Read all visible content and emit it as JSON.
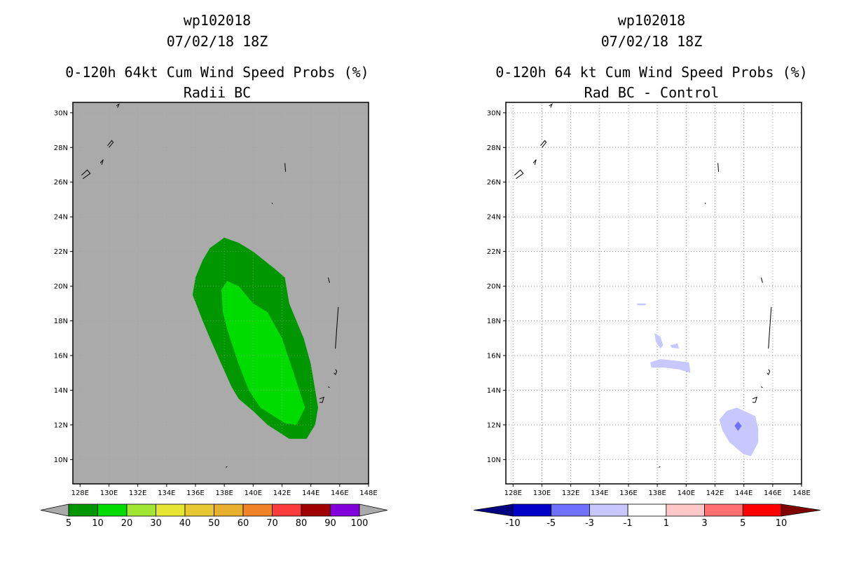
{
  "left_panel": {
    "title_lines": [
      "wp102018",
      "07/02/18 18Z",
      "0-120h 64kt Cum Wind Speed Probs (%)",
      "Radii BC"
    ]
  },
  "right_panel": {
    "title_lines": [
      "wp102018",
      "07/02/18 18Z",
      "0-120h 64 kt Cum Wind Speed Probs (%)",
      "Rad BC - Control"
    ]
  },
  "chart_data": [
    {
      "type": "heatmap",
      "title": "0-120h 64kt Cum Wind Speed Probs (%) Radii BC",
      "x_ticks": [
        "128E",
        "130E",
        "132E",
        "134E",
        "136E",
        "138E",
        "140E",
        "142E",
        "144E",
        "146E",
        "148E"
      ],
      "y_ticks": [
        "10N",
        "12N",
        "14N",
        "16N",
        "18N",
        "20N",
        "22N",
        "24N",
        "26N",
        "28N",
        "30N"
      ],
      "xlim": [
        127.5,
        148
      ],
      "ylim": [
        8.6,
        30.6
      ],
      "background_color": "#aaaaaa",
      "contour_levels": [
        {
          "level": 5,
          "color": "#009600",
          "polygon_lonlat": [
            [
              137,
              22.2
            ],
            [
              138,
              22.8
            ],
            [
              139,
              22.5
            ],
            [
              140,
              22
            ],
            [
              141.5,
              21
            ],
            [
              142.2,
              20.5
            ],
            [
              142.5,
              19
            ],
            [
              143,
              18
            ],
            [
              143.5,
              17
            ],
            [
              144,
              15.5
            ],
            [
              144.2,
              14.5
            ],
            [
              144.5,
              13
            ],
            [
              144.3,
              12
            ],
            [
              143.7,
              11.2
            ],
            [
              142.5,
              11.2
            ],
            [
              141,
              12
            ],
            [
              140,
              12.8
            ],
            [
              139,
              13.5
            ],
            [
              138.5,
              14.2
            ],
            [
              137.8,
              15.5
            ],
            [
              137,
              17
            ],
            [
              136.5,
              18
            ],
            [
              135.8,
              19.5
            ],
            [
              136,
              20.5
            ],
            [
              136.5,
              21.5
            ]
          ]
        },
        {
          "level": 10,
          "color": "#00dc00",
          "polygon_lonlat": [
            [
              138.2,
              20.3
            ],
            [
              139,
              20
            ],
            [
              140,
              19
            ],
            [
              141,
              18.5
            ],
            [
              142,
              17
            ],
            [
              142.8,
              15
            ],
            [
              143.6,
              13
            ],
            [
              143,
              12
            ],
            [
              142.2,
              12.1
            ],
            [
              140.5,
              13
            ],
            [
              139.7,
              14
            ],
            [
              139,
              15.5
            ],
            [
              138.6,
              16.5
            ],
            [
              138.2,
              17.5
            ],
            [
              137.9,
              18.5
            ],
            [
              137.8,
              19.8
            ]
          ]
        }
      ],
      "colorbar": {
        "labels": [
          "5",
          "10",
          "20",
          "30",
          "40",
          "50",
          "60",
          "70",
          "80",
          "90",
          "100"
        ],
        "colors": [
          "#009600",
          "#00dc00",
          "#a0e632",
          "#e6e632",
          "#e6c832",
          "#e6af2d",
          "#f08228",
          "#fa3c3c",
          "#a00000",
          "#8200dc"
        ],
        "under_color": "#aaaaaa",
        "over_color": "#aaaaaa"
      }
    },
    {
      "type": "heatmap",
      "title": "0-120h 64 kt Cum Wind Speed Probs (%) Rad BC - Control",
      "x_ticks": [
        "128E",
        "130E",
        "132E",
        "134E",
        "136E",
        "138E",
        "140E",
        "142E",
        "144E",
        "146E",
        "148E"
      ],
      "y_ticks": [
        "10N",
        "12N",
        "14N",
        "16N",
        "18N",
        "20N",
        "22N",
        "24N",
        "26N",
        "28N",
        "30N"
      ],
      "xlim": [
        127.5,
        148
      ],
      "ylim": [
        8.6,
        30.6
      ],
      "background_color": "#ffffff",
      "regions": [
        {
          "value_range": "-3 to -1",
          "color": "#c8c8ff",
          "polygon_lonlat": [
            [
              143.5,
              13
            ],
            [
              144.3,
              12.7
            ],
            [
              144.8,
              12.5
            ],
            [
              145,
              11.8
            ],
            [
              145,
              11
            ],
            [
              144.5,
              10.2
            ],
            [
              144,
              10.3
            ],
            [
              143,
              11
            ],
            [
              142.5,
              11.7
            ],
            [
              142.3,
              12.3
            ],
            [
              142.8,
              12.8
            ]
          ]
        },
        {
          "value_range": "-5 to -3",
          "color": "#7070ff",
          "polygon_lonlat": [
            [
              143.6,
              12.2
            ],
            [
              143.85,
              11.95
            ],
            [
              143.6,
              11.65
            ],
            [
              143.35,
              11.95
            ]
          ]
        },
        {
          "value_range": "-3 to -1",
          "color": "#c8c8ff",
          "polygon_lonlat": [
            [
              137.5,
              15.6
            ],
            [
              138.2,
              15.8
            ],
            [
              139.3,
              15.7
            ],
            [
              140.2,
              15.6
            ],
            [
              140.3,
              15
            ],
            [
              139.5,
              15.2
            ],
            [
              138.5,
              15.3
            ],
            [
              137.6,
              15.3
            ]
          ]
        },
        {
          "value_range": "-3 to -1",
          "color": "#c8c8ff",
          "polygon_lonlat": [
            [
              138.9,
              16.6
            ],
            [
              139.4,
              16.7
            ],
            [
              139.5,
              16.4
            ],
            [
              139,
              16.45
            ]
          ]
        },
        {
          "value_range": "-3 to -1",
          "color": "#c8c8ff",
          "polygon_lonlat": [
            [
              137.8,
              17.3
            ],
            [
              138.2,
              17.1
            ],
            [
              138.4,
              16.6
            ],
            [
              138.2,
              16.4
            ],
            [
              137.9,
              16.8
            ]
          ]
        },
        {
          "value_range": "-3 to -1",
          "color": "#c8c8ff",
          "polygon_lonlat": [
            [
              136.6,
              19.0
            ],
            [
              137.2,
              19.0
            ],
            [
              137.2,
              18.9
            ],
            [
              136.6,
              18.9
            ]
          ]
        }
      ],
      "colorbar": {
        "labels": [
          "-10",
          "-5",
          "-3",
          "-1",
          "1",
          "3",
          "5",
          "10"
        ],
        "colors": [
          "#0000c8",
          "#7070ff",
          "#c8c8ff",
          "#ffffff",
          "#ffc8c8",
          "#ff7070",
          "#ff0000"
        ],
        "under_color": "#000080",
        "over_color": "#800000"
      }
    }
  ],
  "islands_lonlat": [
    {
      "name": "ryukyu-1",
      "points": [
        [
          128.2,
          26.2
        ],
        [
          128.7,
          26.5
        ],
        [
          128.5,
          26.7
        ],
        [
          128.1,
          26.4
        ]
      ]
    },
    {
      "name": "ryukyu-2",
      "points": [
        [
          129.4,
          27.1
        ],
        [
          129.6,
          27.3
        ],
        [
          129.5,
          27.0
        ]
      ]
    },
    {
      "name": "amami",
      "points": [
        [
          129.9,
          28.1
        ],
        [
          130.2,
          28.4
        ],
        [
          130.3,
          28.3
        ],
        [
          130,
          28
        ]
      ]
    },
    {
      "name": "kyushu-tip",
      "points": [
        [
          130.5,
          30.4
        ],
        [
          130.7,
          30.5
        ],
        [
          130.6,
          30.3
        ]
      ]
    },
    {
      "name": "bonin",
      "points": [
        [
          142.2,
          27.1
        ],
        [
          142.25,
          26.6
        ]
      ]
    },
    {
      "name": "iwo",
      "points": [
        [
          141.3,
          24.8
        ],
        [
          141.35,
          24.75
        ]
      ]
    },
    {
      "name": "marianas-n",
      "points": [
        [
          145.2,
          20.5
        ],
        [
          145.3,
          20.2
        ]
      ]
    },
    {
      "name": "marianas-mid",
      "points": [
        [
          145.9,
          18.8
        ],
        [
          145.8,
          17.6
        ],
        [
          145.7,
          16.4
        ]
      ]
    },
    {
      "name": "saipan",
      "points": [
        [
          145.7,
          15.2
        ],
        [
          145.8,
          15.1
        ],
        [
          145.7,
          14.9
        ],
        [
          145.6,
          15.0
        ]
      ]
    },
    {
      "name": "rota",
      "points": [
        [
          145.2,
          14.2
        ],
        [
          145.3,
          14.15
        ]
      ]
    },
    {
      "name": "guam",
      "points": [
        [
          144.6,
          13.5
        ],
        [
          144.9,
          13.6
        ],
        [
          144.8,
          13.3
        ],
        [
          144.6,
          13.3
        ]
      ]
    },
    {
      "name": "ulithi",
      "points": [
        [
          138.1,
          9.55
        ],
        [
          138.2,
          9.6
        ]
      ]
    }
  ]
}
